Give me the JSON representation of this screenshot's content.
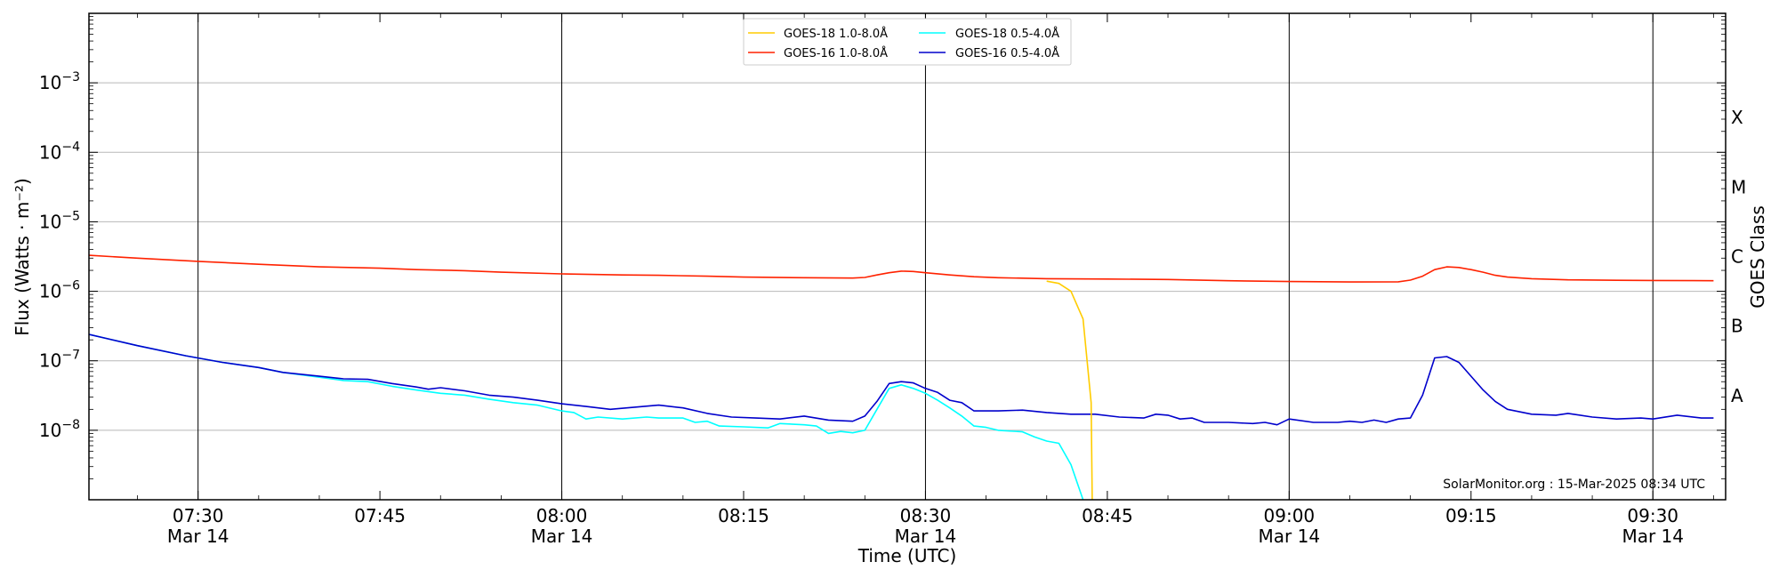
{
  "chart_data": {
    "type": "line",
    "xlabel": "Time (UTC)",
    "ylabel": "Flux (Watts · m⁻²)",
    "right_axis_label": "GOES Class",
    "credit": "SolarMonitor.org : 15-Mar-2025 08:34 UTC",
    "y_scale": "log",
    "ylim": [
      1e-09,
      0.01
    ],
    "xlim": [
      "2025-03-14 07:21",
      "2025-03-14 09:36"
    ],
    "grid": "horizontal at decades, vertical lines at half hours",
    "legend_placement": "top-center",
    "x_ticks": [
      {
        "t": "07:30",
        "line1": "07:30",
        "line2": "Mar 14",
        "major": true
      },
      {
        "t": "07:45",
        "line1": "07:45",
        "line2": "",
        "major": false
      },
      {
        "t": "08:00",
        "line1": "08:00",
        "line2": "Mar 14",
        "major": true
      },
      {
        "t": "08:15",
        "line1": "08:15",
        "line2": "",
        "major": false
      },
      {
        "t": "08:30",
        "line1": "08:30",
        "line2": "Mar 14",
        "major": true
      },
      {
        "t": "08:45",
        "line1": "08:45",
        "line2": "",
        "major": false
      },
      {
        "t": "09:00",
        "line1": "09:00",
        "line2": "Mar 14",
        "major": true
      },
      {
        "t": "09:15",
        "line1": "09:15",
        "line2": "",
        "major": false
      },
      {
        "t": "09:30",
        "line1": "09:30",
        "line2": "Mar 14",
        "major": true
      }
    ],
    "y_ticks": [
      {
        "exp": -8,
        "base": "10",
        "sup": "−8"
      },
      {
        "exp": -7,
        "base": "10",
        "sup": "−7"
      },
      {
        "exp": -6,
        "base": "10",
        "sup": "−6"
      },
      {
        "exp": -5,
        "base": "10",
        "sup": "−5"
      },
      {
        "exp": -4,
        "base": "10",
        "sup": "−4"
      },
      {
        "exp": -3,
        "base": "10",
        "sup": "−3"
      }
    ],
    "class_labels": [
      {
        "label": "A",
        "exp": -7.5
      },
      {
        "label": "B",
        "exp": -6.5
      },
      {
        "label": "C",
        "exp": -5.5
      },
      {
        "label": "M",
        "exp": -4.5
      },
      {
        "label": "X",
        "exp": -3.5
      }
    ],
    "series": [
      {
        "name": "GOES-18 1.0-8.0Å",
        "color": "#ffcc00",
        "points": [
          [
            "08:40",
            1.4e-06
          ],
          [
            "08:41",
            1.3e-06
          ],
          [
            "08:42",
            1e-06
          ],
          [
            "08:43",
            4e-07
          ],
          [
            "08:43:40",
            2.5e-08
          ],
          [
            "08:43:45",
            1e-09
          ]
        ]
      },
      {
        "name": "GOES-16 1.0-8.0Å",
        "color": "#ff2200",
        "points": [
          [
            "07:21",
            3.3e-06
          ],
          [
            "07:25",
            3e-06
          ],
          [
            "07:30",
            2.7e-06
          ],
          [
            "07:35",
            2.45e-06
          ],
          [
            "07:40",
            2.25e-06
          ],
          [
            "07:45",
            2.15e-06
          ],
          [
            "07:48",
            2.05e-06
          ],
          [
            "07:52",
            1.98e-06
          ],
          [
            "07:55",
            1.88e-06
          ],
          [
            "08:00",
            1.78e-06
          ],
          [
            "08:05",
            1.72e-06
          ],
          [
            "08:08",
            1.7e-06
          ],
          [
            "08:12",
            1.65e-06
          ],
          [
            "08:15",
            1.6e-06
          ],
          [
            "08:20",
            1.57e-06
          ],
          [
            "08:24",
            1.55e-06
          ],
          [
            "08:25",
            1.58e-06
          ],
          [
            "08:26",
            1.72e-06
          ],
          [
            "08:27",
            1.85e-06
          ],
          [
            "08:28",
            1.95e-06
          ],
          [
            "08:29",
            1.93e-06
          ],
          [
            "08:30",
            1.85e-06
          ],
          [
            "08:32",
            1.72e-06
          ],
          [
            "08:34",
            1.62e-06
          ],
          [
            "08:36",
            1.57e-06
          ],
          [
            "08:40",
            1.52e-06
          ],
          [
            "08:45",
            1.5e-06
          ],
          [
            "08:50",
            1.48e-06
          ],
          [
            "08:55",
            1.42e-06
          ],
          [
            "09:00",
            1.38e-06
          ],
          [
            "09:05",
            1.36e-06
          ],
          [
            "09:09",
            1.37e-06
          ],
          [
            "09:10",
            1.45e-06
          ],
          [
            "09:11",
            1.65e-06
          ],
          [
            "09:12",
            2.05e-06
          ],
          [
            "09:13",
            2.25e-06
          ],
          [
            "09:14",
            2.2e-06
          ],
          [
            "09:15",
            2.05e-06
          ],
          [
            "09:16",
            1.88e-06
          ],
          [
            "09:17",
            1.7e-06
          ],
          [
            "09:18",
            1.6e-06
          ],
          [
            "09:20",
            1.52e-06
          ],
          [
            "09:23",
            1.46e-06
          ],
          [
            "09:27",
            1.44e-06
          ],
          [
            "09:30",
            1.43e-06
          ],
          [
            "09:35",
            1.42e-06
          ]
        ]
      },
      {
        "name": "GOES-18 0.5-4.0Å",
        "color": "#00ffff",
        "points": [
          [
            "07:21",
            2.4e-07
          ],
          [
            "07:25",
            1.65e-07
          ],
          [
            "07:29",
            1.18e-07
          ],
          [
            "07:32",
            9.5e-08
          ],
          [
            "07:35",
            8e-08
          ],
          [
            "07:37",
            6.8e-08
          ],
          [
            "07:40",
            5.8e-08
          ],
          [
            "07:42",
            5.2e-08
          ],
          [
            "07:44",
            5e-08
          ],
          [
            "07:46",
            4.3e-08
          ],
          [
            "07:48",
            3.8e-08
          ],
          [
            "07:49",
            3.6e-08
          ],
          [
            "07:50",
            3.4e-08
          ],
          [
            "07:52",
            3.2e-08
          ],
          [
            "07:54",
            2.8e-08
          ],
          [
            "07:56",
            2.5e-08
          ],
          [
            "07:58",
            2.3e-08
          ],
          [
            "08:00",
            1.9e-08
          ],
          [
            "08:01",
            1.8e-08
          ],
          [
            "08:02",
            1.45e-08
          ],
          [
            "08:03",
            1.55e-08
          ],
          [
            "08:05",
            1.45e-08
          ],
          [
            "08:07",
            1.55e-08
          ],
          [
            "08:08",
            1.5e-08
          ],
          [
            "08:10",
            1.5e-08
          ],
          [
            "08:11",
            1.3e-08
          ],
          [
            "08:12",
            1.35e-08
          ],
          [
            "08:13",
            1.15e-08
          ],
          [
            "08:15",
            1.12e-08
          ],
          [
            "08:17",
            1.08e-08
          ],
          [
            "08:18",
            1.25e-08
          ],
          [
            "08:20",
            1.2e-08
          ],
          [
            "08:21",
            1.15e-08
          ],
          [
            "08:22",
            9e-09
          ],
          [
            "08:23",
            9.6e-09
          ],
          [
            "08:24",
            9.2e-09
          ],
          [
            "08:25",
            1e-08
          ],
          [
            "08:26",
            2e-08
          ],
          [
            "08:27",
            4e-08
          ],
          [
            "08:28",
            4.5e-08
          ],
          [
            "08:29",
            4e-08
          ],
          [
            "08:30",
            3.4e-08
          ],
          [
            "08:31",
            2.7e-08
          ],
          [
            "08:32",
            2.1e-08
          ],
          [
            "08:33",
            1.6e-08
          ],
          [
            "08:34",
            1.15e-08
          ],
          [
            "08:35",
            1.1e-08
          ],
          [
            "08:36",
            1e-08
          ],
          [
            "08:38",
            9.5e-09
          ],
          [
            "08:39",
            8e-09
          ],
          [
            "08:40",
            7e-09
          ],
          [
            "08:41",
            6.5e-09
          ],
          [
            "08:42",
            3.2e-09
          ],
          [
            "08:43",
            1e-09
          ]
        ]
      },
      {
        "name": "GOES-16 0.5-4.0Å",
        "color": "#0000cc",
        "points": [
          [
            "07:21",
            2.4e-07
          ],
          [
            "07:25",
            1.65e-07
          ],
          [
            "07:29",
            1.18e-07
          ],
          [
            "07:32",
            9.5e-08
          ],
          [
            "07:35",
            8e-08
          ],
          [
            "07:37",
            6.8e-08
          ],
          [
            "07:40",
            6e-08
          ],
          [
            "07:42",
            5.5e-08
          ],
          [
            "07:44",
            5.4e-08
          ],
          [
            "07:46",
            4.7e-08
          ],
          [
            "07:48",
            4.2e-08
          ],
          [
            "07:49",
            3.9e-08
          ],
          [
            "07:50",
            4.1e-08
          ],
          [
            "07:52",
            3.7e-08
          ],
          [
            "07:54",
            3.2e-08
          ],
          [
            "07:56",
            3e-08
          ],
          [
            "07:58",
            2.7e-08
          ],
          [
            "08:00",
            2.4e-08
          ],
          [
            "08:02",
            2.2e-08
          ],
          [
            "08:04",
            2e-08
          ],
          [
            "08:06",
            2.15e-08
          ],
          [
            "08:08",
            2.3e-08
          ],
          [
            "08:10",
            2.1e-08
          ],
          [
            "08:12",
            1.75e-08
          ],
          [
            "08:14",
            1.55e-08
          ],
          [
            "08:16",
            1.5e-08
          ],
          [
            "08:18",
            1.45e-08
          ],
          [
            "08:20",
            1.6e-08
          ],
          [
            "08:22",
            1.4e-08
          ],
          [
            "08:24",
            1.35e-08
          ],
          [
            "08:25",
            1.6e-08
          ],
          [
            "08:26",
            2.6e-08
          ],
          [
            "08:27",
            4.7e-08
          ],
          [
            "08:28",
            5e-08
          ],
          [
            "08:29",
            4.8e-08
          ],
          [
            "08:30",
            4e-08
          ],
          [
            "08:31",
            3.5e-08
          ],
          [
            "08:32",
            2.7e-08
          ],
          [
            "08:33",
            2.5e-08
          ],
          [
            "08:34",
            1.9e-08
          ],
          [
            "08:36",
            1.9e-08
          ],
          [
            "08:38",
            1.95e-08
          ],
          [
            "08:40",
            1.8e-08
          ],
          [
            "08:42",
            1.7e-08
          ],
          [
            "08:44",
            1.7e-08
          ],
          [
            "08:46",
            1.55e-08
          ],
          [
            "08:48",
            1.5e-08
          ],
          [
            "08:49",
            1.7e-08
          ],
          [
            "08:50",
            1.65e-08
          ],
          [
            "08:51",
            1.45e-08
          ],
          [
            "08:52",
            1.5e-08
          ],
          [
            "08:53",
            1.3e-08
          ],
          [
            "08:55",
            1.3e-08
          ],
          [
            "08:57",
            1.25e-08
          ],
          [
            "08:58",
            1.3e-08
          ],
          [
            "08:59",
            1.2e-08
          ],
          [
            "09:00",
            1.45e-08
          ],
          [
            "09:02",
            1.3e-08
          ],
          [
            "09:04",
            1.3e-08
          ],
          [
            "09:05",
            1.35e-08
          ],
          [
            "09:06",
            1.3e-08
          ],
          [
            "09:07",
            1.4e-08
          ],
          [
            "09:08",
            1.3e-08
          ],
          [
            "09:09",
            1.45e-08
          ],
          [
            "09:10",
            1.5e-08
          ],
          [
            "09:11",
            3.2e-08
          ],
          [
            "09:12",
            1.1e-07
          ],
          [
            "09:13",
            1.15e-07
          ],
          [
            "09:14",
            9.5e-08
          ],
          [
            "09:15",
            6e-08
          ],
          [
            "09:16",
            3.8e-08
          ],
          [
            "09:17",
            2.6e-08
          ],
          [
            "09:18",
            2e-08
          ],
          [
            "09:20",
            1.7e-08
          ],
          [
            "09:22",
            1.65e-08
          ],
          [
            "09:23",
            1.75e-08
          ],
          [
            "09:25",
            1.55e-08
          ],
          [
            "09:27",
            1.45e-08
          ],
          [
            "09:29",
            1.5e-08
          ],
          [
            "09:30",
            1.45e-08
          ],
          [
            "09:32",
            1.65e-08
          ],
          [
            "09:34",
            1.5e-08
          ],
          [
            "09:35",
            1.5e-08
          ]
        ]
      }
    ]
  }
}
